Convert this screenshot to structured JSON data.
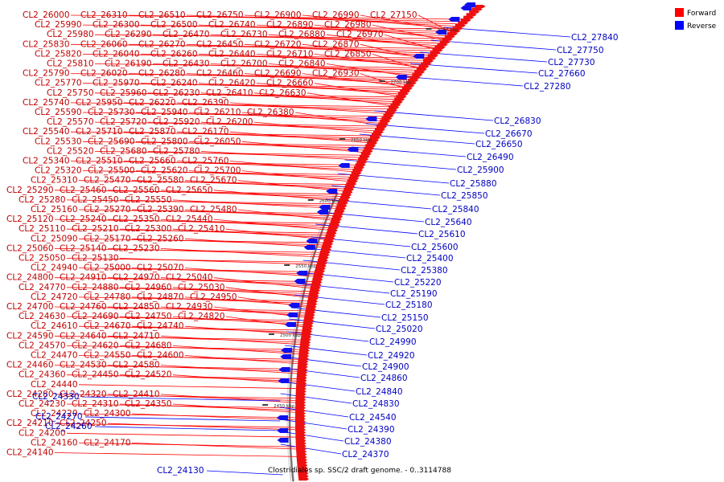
{
  "legend": {
    "forward_label": "Forward",
    "reverse_label": "Reverse",
    "forward_color": "#ff0000",
    "reverse_color": "#0000ff"
  },
  "map_title": "Clostridiales sp. SSC/2 draft genome. - 0..3114788",
  "ticks": [
    "2450 kbp",
    "2500 kbp",
    "2550 kbp",
    "2600 kbp",
    "2650 kbp",
    "2700 kbp",
    "2750 kbp"
  ],
  "forward_labels": [
    "CL2_26000",
    "CL2_26310",
    "CL2_26510",
    "CL2_26750",
    "CL2_26900",
    "CL2_26990",
    "CL2_27150",
    "CL2_25990",
    "CL2_26300",
    "CL2_26500",
    "CL2_26740",
    "CL2_26890",
    "CL2_26980",
    "CL2_25980",
    "CL2_26290",
    "CL2_26470",
    "CL2_26730",
    "CL2_26880",
    "CL2_26970",
    "CL2_25830",
    "CL2_26060",
    "CL2_26270",
    "CL2_26450",
    "CL2_26720",
    "CL2_26870",
    "CL2_25820",
    "CL2_26040",
    "CL2_26260",
    "CL2_26440",
    "CL2_26710",
    "CL2_26850",
    "CL2_25810",
    "CL2_26190",
    "CL2_26430",
    "CL2_26700",
    "CL2_26840",
    "CL2_25790",
    "CL2_26020",
    "CL2_26280",
    "CL2_26460",
    "CL2_26690",
    "CL2_26930",
    "CL2_25770",
    "CL2_25970",
    "CL2_26240",
    "CL2_26420",
    "CL2_26660",
    "CL2_25750",
    "CL2_25960",
    "CL2_26230",
    "CL2_26410",
    "CL2_26630",
    "CL2_25740",
    "CL2_25950",
    "CL2_26220",
    "CL2_26390",
    "CL2_25590",
    "CL2_25730",
    "CL2_25940",
    "CL2_26210",
    "CL2_26380",
    "CL2_25570",
    "CL2_25720",
    "CL2_25920",
    "CL2_26200",
    "CL2_25540",
    "CL2_25710",
    "CL2_25870",
    "CL2_26170",
    "CL2_25530",
    "CL2_25690",
    "CL2_25800",
    "CL2_26050",
    "CL2_25520",
    "CL2_25680",
    "CL2_25780",
    "CL2_25340",
    "CL2_25510",
    "CL2_25660",
    "CL2_25760",
    "CL2_25320",
    "CL2_25500",
    "CL2_25620",
    "CL2_25700",
    "CL2_25310",
    "CL2_25470",
    "CL2_25580",
    "CL2_25670",
    "CL2_25290",
    "CL2_25460",
    "CL2_25560",
    "CL2_25650",
    "CL2_25280",
    "CL2_25450",
    "CL2_25550",
    "CL2_25160",
    "CL2_25270",
    "CL2_25390",
    "CL2_25480",
    "CL2_25120",
    "CL2_25240",
    "CL2_25350",
    "CL2_25440",
    "CL2_25110",
    "CL2_25210",
    "CL2_25300",
    "CL2_25410",
    "CL2_25090",
    "CL2_25170",
    "CL2_25260",
    "CL2_25060",
    "CL2_25140",
    "CL2_25230",
    "CL2_25050",
    "CL2_25130",
    "CL2_24940",
    "CL2_25000",
    "CL2_25070",
    "CL2_24800",
    "CL2_24910",
    "CL2_24970",
    "CL2_25040",
    "CL2_24770",
    "CL2_24880",
    "CL2_24960",
    "CL2_25030",
    "CL2_24720",
    "CL2_24780",
    "CL2_24870",
    "CL2_24950",
    "CL2_24700",
    "CL2_24760",
    "CL2_24850",
    "CL2_24930",
    "CL2_24630",
    "CL2_24690",
    "CL2_24750",
    "CL2_24820",
    "CL2_24610",
    "CL2_24670",
    "CL2_24740",
    "CL2_24590",
    "CL2_24640",
    "CL2_24710",
    "CL2_24570",
    "CL2_24620",
    "CL2_24680",
    "CL2_24470",
    "CL2_24550",
    "CL2_24600",
    "CL2_24460",
    "CL2_24530",
    "CL2_24580",
    "CL2_24360",
    "CL2_24450",
    "CL2_24520",
    "CL2_24440",
    "CL2_24280",
    "CL2_24320",
    "CL2_24410",
    "CL2_24230",
    "CL2_24310",
    "CL2_24350",
    "CL2_24220",
    "CL2_24300",
    "CL2_24210",
    "CL2_24250",
    "CL2_24200",
    "CL2_24160",
    "CL2_24170",
    "CL2_24140"
  ],
  "reverse_labels": [
    "CL2_27840",
    "CL2_27750",
    "CL2_27730",
    "CL2_27660",
    "CL2_27280",
    "CL2_26830",
    "CL2_26670",
    "CL2_26650",
    "CL2_26490",
    "CL2_25900",
    "CL2_25880",
    "CL2_25850",
    "CL2_25840",
    "CL2_25640",
    "CL2_25610",
    "CL2_25600",
    "CL2_25400",
    "CL2_25380",
    "CL2_25220",
    "CL2_25190",
    "CL2_25180",
    "CL2_25150",
    "CL2_25020",
    "CL2_24990",
    "CL2_24920",
    "CL2_24900",
    "CL2_24860",
    "CL2_24840",
    "CL2_24830",
    "CL2_24540",
    "CL2_24390",
    "CL2_24380",
    "CL2_24370",
    "CL2_24330",
    "CL2_24270",
    "CL2_24260",
    "CL2_24130"
  ]
}
